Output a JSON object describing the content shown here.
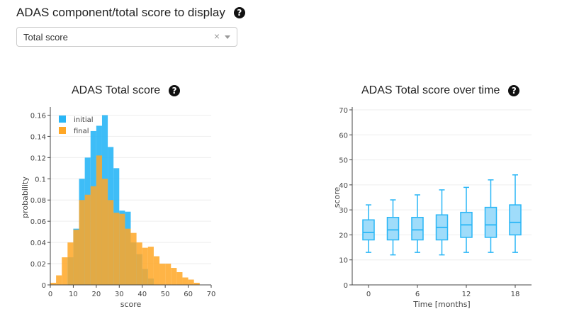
{
  "header": {
    "title": "ADAS component/total score to display",
    "help_icon": "question-circle-icon"
  },
  "selector": {
    "value": "Total score",
    "clear_icon": "×",
    "arrow_icon": "chevron-down-icon"
  },
  "chart_data": [
    {
      "type": "bar",
      "title": "ADAS Total score",
      "xlabel": "score",
      "ylabel": "probability",
      "xlim": [
        0,
        70
      ],
      "ylim": [
        0,
        0.165
      ],
      "xticks": [
        0,
        10,
        20,
        30,
        40,
        50,
        60,
        70
      ],
      "yticks": [
        0,
        0.02,
        0.04,
        0.06,
        0.08,
        0.1,
        0.12,
        0.14,
        0.16
      ],
      "legend_position": "top-left",
      "bin_edges": [
        0,
        2.5,
        5,
        7.5,
        10,
        12.5,
        15,
        17.5,
        20,
        22.5,
        25,
        27.5,
        30,
        32.5,
        35,
        37.5,
        40,
        42.5,
        45,
        47.5,
        50,
        52.5,
        55,
        57.5,
        60,
        62.5,
        65,
        67.5
      ],
      "series": [
        {
          "name": "initial",
          "color": "#29b6f6",
          "values": [
            0,
            0,
            0,
            0.026,
            0.053,
            0.1,
            0.12,
            0.145,
            0.15,
            0.16,
            0.13,
            0.11,
            0.07,
            0.069,
            0.04,
            0.029,
            0.015,
            0.006,
            0,
            0,
            0,
            0,
            0,
            0,
            0,
            0,
            0
          ]
        },
        {
          "name": "final",
          "color": "#ffa726",
          "values": [
            0.002,
            0.009,
            0.026,
            0.04,
            0.052,
            0.08,
            0.085,
            0.093,
            0.122,
            0.1,
            0.08,
            0.068,
            0.067,
            0.053,
            0.049,
            0.04,
            0.035,
            0.036,
            0.027,
            0.02,
            0.02,
            0.016,
            0.012,
            0.007,
            0.005,
            0.002,
            0
          ]
        }
      ]
    },
    {
      "type": "box",
      "title": "ADAS Total score over time",
      "xlabel": "Time [months]",
      "ylabel": "score",
      "xlim": [
        -2,
        20
      ],
      "ylim": [
        0,
        70
      ],
      "xticks": [
        0,
        6,
        12,
        18
      ],
      "yticks": [
        0,
        10,
        20,
        30,
        40,
        50,
        60,
        70
      ],
      "color": "#29b6f6",
      "boxes": [
        {
          "x": 0,
          "min": 13,
          "q1": 18,
          "median": 21,
          "q3": 26,
          "max": 32
        },
        {
          "x": 3,
          "min": 12,
          "q1": 18,
          "median": 22,
          "q3": 27,
          "max": 34
        },
        {
          "x": 6,
          "min": 13,
          "q1": 18,
          "median": 22,
          "q3": 27,
          "max": 36
        },
        {
          "x": 9,
          "min": 12,
          "q1": 18,
          "median": 23,
          "q3": 28,
          "max": 38
        },
        {
          "x": 12,
          "min": 13,
          "q1": 19,
          "median": 24,
          "q3": 29,
          "max": 39
        },
        {
          "x": 15,
          "min": 13,
          "q1": 19,
          "median": 24,
          "q3": 31,
          "max": 42
        },
        {
          "x": 18,
          "min": 13,
          "q1": 20,
          "median": 25,
          "q3": 32,
          "max": 44
        }
      ]
    }
  ]
}
